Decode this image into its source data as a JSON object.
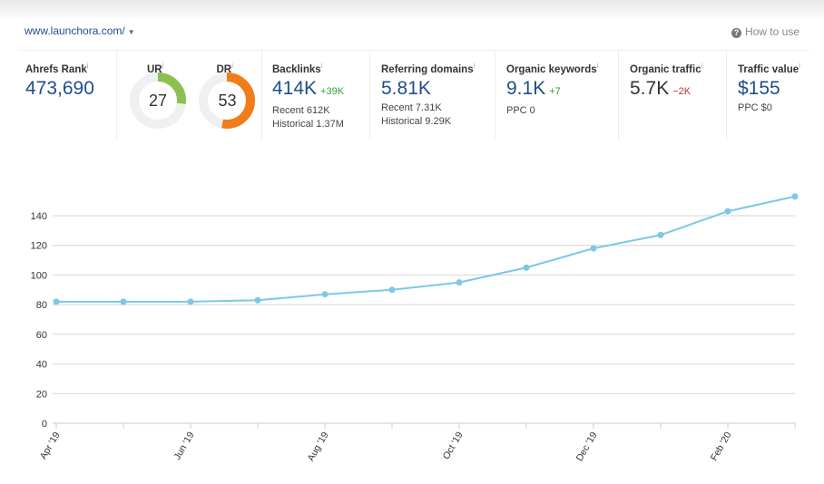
{
  "header": {
    "url": "www.launchora.com/",
    "how_to_use": "How to use"
  },
  "metrics": {
    "ahrefs_rank": {
      "label": "Ahrefs Rank",
      "value": "473,690"
    },
    "ur": {
      "label": "UR",
      "value": "27",
      "score": 27,
      "color": "#8cc152"
    },
    "dr": {
      "label": "DR",
      "value": "53",
      "score": 53,
      "color": "#f07d19"
    },
    "backlinks": {
      "label": "Backlinks",
      "value": "414K",
      "delta": "+39K",
      "recent": "Recent 612K",
      "historical": "Historical 1.37M"
    },
    "referring_domains": {
      "label": "Referring domains",
      "value": "5.81K",
      "recent": "Recent 7.31K",
      "historical": "Historical 9.29K"
    },
    "organic_keywords": {
      "label": "Organic keywords",
      "value": "9.1K",
      "delta": "+7",
      "ppc": "PPC 0"
    },
    "organic_traffic": {
      "label": "Organic traffic",
      "value": "5.7K",
      "delta": "−2K"
    },
    "traffic_value": {
      "label": "Traffic value",
      "value": "$155",
      "ppc": "PPC $0"
    },
    "info_mark": "i"
  },
  "chart_data": {
    "type": "line",
    "x": [
      "Apr '19",
      "May '19",
      "Jun '19",
      "Jul '19",
      "Aug '19",
      "Sep '19",
      "Oct '19",
      "Nov '19",
      "Dec '19",
      "Jan '20",
      "Feb '20",
      "Mar '20"
    ],
    "x_tick_labels": [
      "Apr '19",
      "",
      "Jun '19",
      "",
      "Aug '19",
      "",
      "Oct '19",
      "",
      "Dec '19",
      "",
      "Feb '20",
      ""
    ],
    "series": [
      {
        "values": [
          82,
          82,
          82,
          83,
          87,
          90,
          95,
          105,
          118,
          127,
          143,
          153
        ],
        "color": "#7cc8e6"
      }
    ],
    "ylim": [
      0,
      140
    ],
    "y_ticks": [
      0,
      20,
      40,
      60,
      80,
      100,
      120,
      140
    ],
    "grid": true
  }
}
